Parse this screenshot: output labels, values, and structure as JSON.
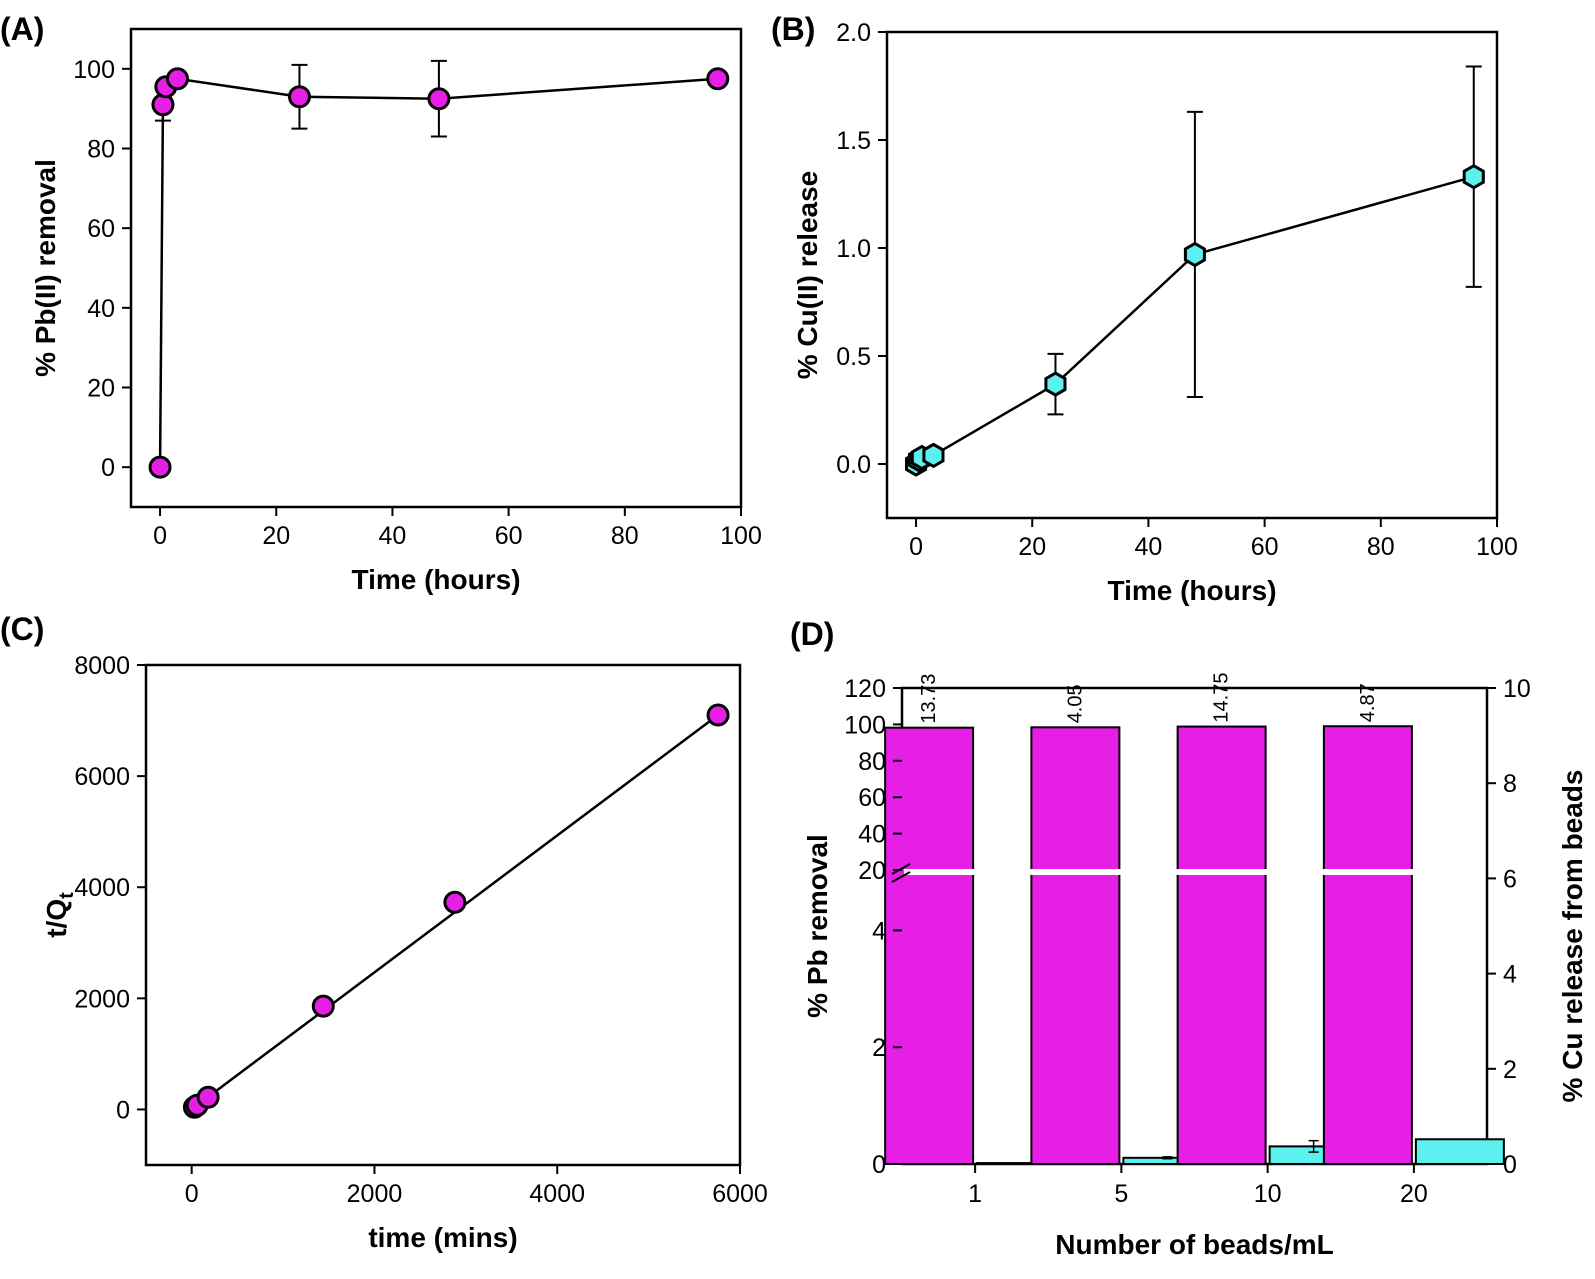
{
  "chart_data": [
    {
      "panel": "(A)",
      "type": "scatter",
      "xlabel": "Time (hours)",
      "ylabel": "% Pb(II) removal",
      "xlim": [
        -5,
        100
      ],
      "ylim": [
        -10,
        110
      ],
      "xticks": [
        0,
        20,
        40,
        60,
        80,
        100
      ],
      "yticks": [
        0,
        20,
        40,
        60,
        80,
        100
      ],
      "marker_color": "#e61ee6",
      "points": [
        {
          "x": 0,
          "y": 0,
          "err": 0
        },
        {
          "x": 0.5,
          "y": 91,
          "err": 4
        },
        {
          "x": 1,
          "y": 95.5,
          "err": 0
        },
        {
          "x": 3,
          "y": 97.5,
          "err": 0
        },
        {
          "x": 24,
          "y": 93,
          "err": 8
        },
        {
          "x": 48,
          "y": 92.5,
          "err": 9.5
        },
        {
          "x": 96,
          "y": 97.5,
          "err": 0
        }
      ]
    },
    {
      "panel": "(B)",
      "type": "scatter",
      "xlabel": "Time (hours)",
      "ylabel": "% Cu(II) release",
      "xlim": [
        -5,
        100
      ],
      "ylim": [
        -0.25,
        2.0
      ],
      "xticks": [
        0,
        20,
        40,
        60,
        80,
        100
      ],
      "yticks": [
        "0.0",
        "0.5",
        "1.0",
        "1.5",
        "2.0"
      ],
      "marker_color": "#5cf0ee",
      "points": [
        {
          "x": 0,
          "y": 0.0,
          "err": 0
        },
        {
          "x": 0.5,
          "y": 0.02,
          "err": 0
        },
        {
          "x": 1,
          "y": 0.03,
          "err": 0
        },
        {
          "x": 3,
          "y": 0.04,
          "err": 0
        },
        {
          "x": 24,
          "y": 0.37,
          "err": 0.14
        },
        {
          "x": 48,
          "y": 0.97,
          "err": 0.66
        },
        {
          "x": 96,
          "y": 1.33,
          "err": 0.51
        }
      ]
    },
    {
      "panel": "(C)",
      "type": "scatter",
      "xlabel": "time (mins)",
      "ylabel": "t/Q",
      "ylabel_sub": "t",
      "xlim": [
        -500,
        6000
      ],
      "ylim": [
        -1000,
        8000
      ],
      "xticks": [
        0,
        2000,
        4000,
        6000
      ],
      "yticks": [
        0,
        2000,
        4000,
        6000,
        8000
      ],
      "marker_color": "#e61ee6",
      "points": [
        {
          "x": 30,
          "y": 40
        },
        {
          "x": 60,
          "y": 75
        },
        {
          "x": 180,
          "y": 220
        },
        {
          "x": 1440,
          "y": 1860
        },
        {
          "x": 2880,
          "y": 3730
        },
        {
          "x": 5760,
          "y": 7100
        }
      ],
      "fit_line": {
        "x": [
          30,
          5760
        ],
        "y": [
          40,
          7100
        ]
      }
    },
    {
      "panel": "(D)",
      "type": "bar",
      "xlabel": "Number of beads/mL",
      "ylabel_left": "% Pb removal",
      "ylabel_right": "% Cu release from beads",
      "categories": [
        "1",
        "5",
        "10",
        "20"
      ],
      "left_axis_lower": {
        "range": [
          0,
          5
        ],
        "ticks": [
          0,
          2,
          4
        ]
      },
      "left_axis_upper": {
        "range": [
          20,
          120
        ],
        "ticks": [
          20,
          40,
          60,
          80,
          100,
          120
        ]
      },
      "right_axis": {
        "range": [
          0,
          10
        ],
        "ticks": [
          0,
          2,
          4,
          6,
          8,
          10
        ]
      },
      "series": [
        {
          "values": [
            98.2,
            98.4,
            98.8,
            99.0
          ],
          "color": "#e61ee6",
          "labels": [
            "13.73",
            "4.05",
            "14.75",
            "4.87"
          ]
        },
        {
          "values": [
            0.02,
            0.13,
            0.37,
            0.52
          ],
          "errors": [
            0,
            0.02,
            0.12,
            0
          ],
          "color": "#5cf0ee"
        }
      ]
    }
  ]
}
